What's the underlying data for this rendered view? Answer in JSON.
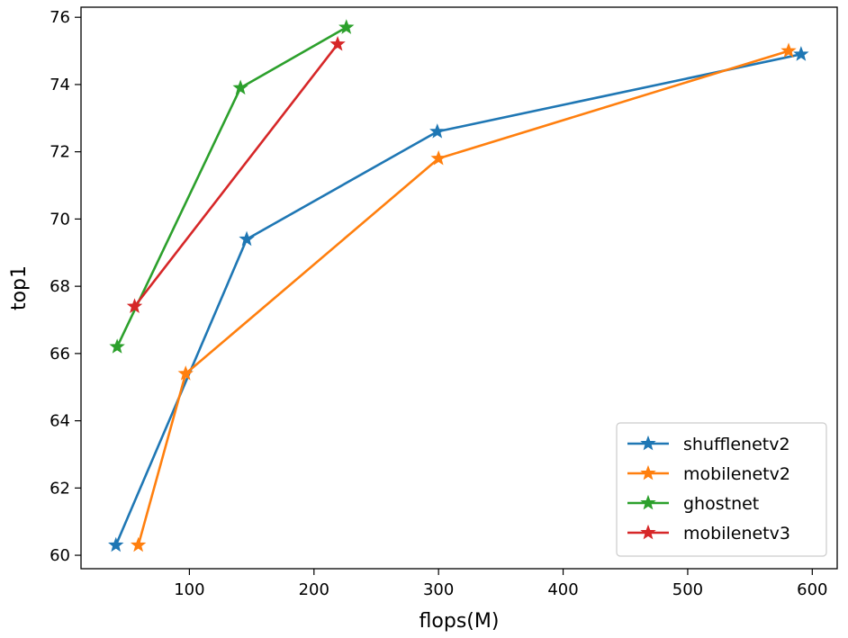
{
  "chart_data": {
    "type": "line",
    "title": "",
    "xlabel": "flops(M)",
    "ylabel": "top1",
    "xlim": [
      13,
      620
    ],
    "ylim": [
      59.6,
      76.3
    ],
    "xticks": [
      100,
      200,
      300,
      400,
      500,
      600
    ],
    "yticks": [
      60,
      62,
      64,
      66,
      68,
      70,
      72,
      74,
      76
    ],
    "grid": false,
    "legend_position": "lower-right",
    "marker": "star",
    "series": [
      {
        "name": "shufflenetv2",
        "color": "#1f77b4",
        "x": [
          41,
          146,
          299,
          591
        ],
        "y": [
          60.3,
          69.4,
          72.6,
          74.9
        ]
      },
      {
        "name": "mobilenetv2",
        "color": "#ff7f0e",
        "x": [
          59,
          97,
          300,
          581
        ],
        "y": [
          60.3,
          65.4,
          71.8,
          75.0
        ]
      },
      {
        "name": "ghostnet",
        "color": "#2ca02c",
        "x": [
          42,
          141,
          226
        ],
        "y": [
          66.2,
          73.9,
          75.7
        ]
      },
      {
        "name": "mobilenetv3",
        "color": "#d62728",
        "x": [
          56,
          219
        ],
        "y": [
          67.4,
          75.2
        ]
      }
    ]
  }
}
